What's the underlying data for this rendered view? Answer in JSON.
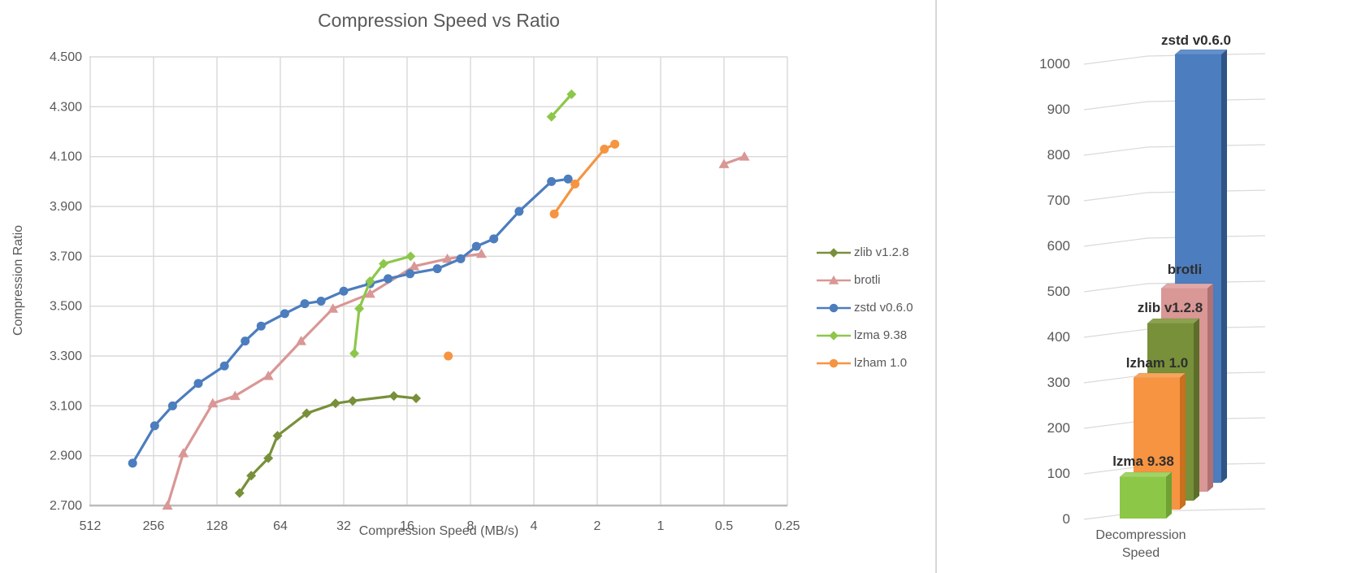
{
  "theme": {
    "background": "#FFFFFF",
    "grid": "#D9D9D9",
    "axis_line": "#BBBBBB",
    "tick_text": "#595959",
    "title_text": "#595959",
    "bar_label_text": "#2E2E2E",
    "divider": "#D6D6D6"
  },
  "chart_data": [
    {
      "type": "line",
      "title": "Compression Speed vs Ratio",
      "xlabel": "Compression Speed (MB/s)",
      "ylabel": "Compression Ratio",
      "x_scale": "log2-reversed",
      "x_ticks": [
        "512",
        "256",
        "128",
        "64",
        "32",
        "16",
        "8",
        "4",
        "2",
        "1",
        "0.5",
        "0.25"
      ],
      "y_tick_labels": [
        "4.500",
        "4.300",
        "4.100",
        "3.900",
        "3.700",
        "3.500",
        "3.300",
        "3.100",
        "2.900",
        "2.700"
      ],
      "ylim": [
        2.7,
        4.5
      ],
      "grid": true,
      "legend_position": "right",
      "series": [
        {
          "name": "zlib v1.2.8",
          "color": "#78903A",
          "marker": "diamond",
          "segments": [
            [
              [
                100,
                2.75
              ],
              [
                88,
                2.82
              ],
              [
                73,
                2.89
              ],
              [
                66,
                2.98
              ],
              [
                48,
                3.07
              ],
              [
                35,
                3.11
              ],
              [
                29,
                3.12
              ],
              [
                18.5,
                3.14
              ],
              [
                14.5,
                3.13
              ]
            ]
          ]
        },
        {
          "name": "brotli",
          "color": "#D99795",
          "marker": "triangle",
          "segments": [
            [
              [
                220,
                2.7
              ],
              [
                185,
                2.91
              ],
              [
                134,
                3.11
              ],
              [
                105,
                3.14
              ],
              [
                73,
                3.22
              ],
              [
                51,
                3.36
              ],
              [
                36,
                3.49
              ],
              [
                24,
                3.55
              ],
              [
                14.8,
                3.66
              ],
              [
                10.3,
                3.69
              ],
              [
                7.1,
                3.71
              ]
            ],
            [
              [
                0.5,
                4.07
              ],
              [
                0.4,
                4.1
              ]
            ]
          ]
        },
        {
          "name": "zstd v0.6.0",
          "color": "#4C7DBE",
          "marker": "circle",
          "segments": [
            [
              [
                322,
                2.87
              ],
              [
                253,
                3.02
              ],
              [
                208,
                3.1
              ],
              [
                157,
                3.19
              ],
              [
                118,
                3.26
              ],
              [
                94,
                3.36
              ],
              [
                79,
                3.42
              ],
              [
                61,
                3.47
              ],
              [
                49,
                3.51
              ],
              [
                41,
                3.52
              ],
              [
                32,
                3.56
              ],
              [
                24,
                3.59
              ],
              [
                19.7,
                3.61
              ],
              [
                15.5,
                3.63
              ],
              [
                11.5,
                3.65
              ],
              [
                8.9,
                3.69
              ],
              [
                7.5,
                3.74
              ],
              [
                6.2,
                3.77
              ],
              [
                4.7,
                3.88
              ],
              [
                3.3,
                4.0
              ],
              [
                2.75,
                4.01
              ]
            ]
          ]
        },
        {
          "name": "lzma 9.38",
          "color": "#8DC74A",
          "marker": "diamond",
          "segments": [
            [
              [
                28.5,
                3.31
              ],
              [
                27,
                3.49
              ],
              [
                24,
                3.6
              ],
              [
                20.7,
                3.67
              ],
              [
                15.4,
                3.7
              ]
            ],
            [
              [
                3.3,
                4.26
              ],
              [
                2.65,
                4.35
              ]
            ]
          ]
        },
        {
          "name": "lzham 1.0",
          "color": "#F69442",
          "marker": "circle",
          "segments": [
            [
              [
                10.2,
                3.3
              ]
            ],
            [
              [
                3.2,
                3.87
              ],
              [
                2.55,
                3.99
              ],
              [
                1.85,
                4.13
              ],
              [
                1.65,
                4.15
              ]
            ]
          ]
        }
      ]
    },
    {
      "type": "bar",
      "variant": "3d-column",
      "category": "Decompression Speed",
      "y_ticks": [
        "0",
        "100",
        "200",
        "300",
        "400",
        "500",
        "600",
        "700",
        "800",
        "900",
        "1000"
      ],
      "ylim": [
        0,
        1000
      ],
      "bars": [
        {
          "label": "lzma 9.38",
          "value": 90,
          "front": "#8DC748",
          "side": "#6FA233",
          "top": "#A0D464"
        },
        {
          "label": "lzham 1.0",
          "value": 290,
          "front": "#F69442",
          "side": "#C96F1E",
          "top": "#F8A55C"
        },
        {
          "label": "zlib v1.2.8",
          "value": 430,
          "front": "#78903A",
          "side": "#5C6E2A",
          "top": "#8CA24E"
        },
        {
          "label": "brotli",
          "value": 500,
          "front": "#D99795",
          "side": "#B07173",
          "top": "#E2A9A9"
        },
        {
          "label": "zstd v0.6.0",
          "value": 1020,
          "front": "#4C7DBE",
          "side": "#2E5585",
          "top": "#6290CC"
        }
      ]
    }
  ]
}
